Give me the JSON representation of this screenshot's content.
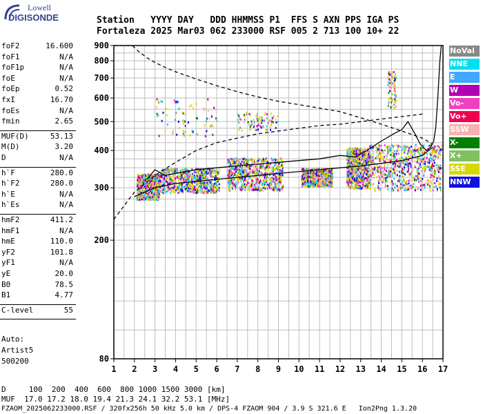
{
  "logo": {
    "line1": "Lowell",
    "line2": "DIGISONDE"
  },
  "header": {
    "line1": "Station   YYYY DAY   DDD HHMMSS P1  FFS S AXN PPS IGA PS",
    "line2": "Fortaleza 2025 Mar03 062 233000 RSF 005 2 713 100 10+ 22"
  },
  "parameters": [
    {
      "name": "foF2",
      "value": "16.600"
    },
    {
      "name": "foF1",
      "value": "N/A"
    },
    {
      "name": "foF1p",
      "value": "N/A"
    },
    {
      "name": "foE",
      "value": "N/A"
    },
    {
      "name": "foEp",
      "value": "0.52"
    },
    {
      "name": "fxI",
      "value": "16.70"
    },
    {
      "name": "foEs",
      "value": "N/A"
    },
    {
      "name": "fmin",
      "value": "2.65"
    },
    {
      "name": "MUF(D)",
      "value": "53.13"
    },
    {
      "name": "M(D)",
      "value": "3.20"
    },
    {
      "name": "D",
      "value": "N/A"
    },
    {
      "name": "h`F",
      "value": "280.0"
    },
    {
      "name": "h`F2",
      "value": "280.0"
    },
    {
      "name": "h`E",
      "value": "N/A"
    },
    {
      "name": "h`Es",
      "value": "N/A"
    },
    {
      "name": "hmF2",
      "value": "411.2"
    },
    {
      "name": "hmF1",
      "value": "N/A"
    },
    {
      "name": "hmE",
      "value": "110.0"
    },
    {
      "name": "yF2",
      "value": "101.8"
    },
    {
      "name": "yF1",
      "value": "N/A"
    },
    {
      "name": "yE",
      "value": "20.0"
    },
    {
      "name": "B0",
      "value": "78.5"
    },
    {
      "name": "B1",
      "value": "4.77"
    },
    {
      "name": "C-level",
      "value": "55"
    }
  ],
  "auto": {
    "line1": "Auto:",
    "line2": "Artist5",
    "line3": "500200"
  },
  "footer": {
    "line1": "D     100  200  400  600  800 1000 1500 3000 [km]",
    "line2": "MUF  17.0 17.2 18.0 19.4 21.3 24.1 32.2 53.1 [MHz]",
    "line3": "FZAOM_2025062233000.RSF / 320fx256h 50 kHz 5.0 km / DPS-4 FZAOM 904 / 3.9 S 321.6 E   Ion2Png 1.3.20"
  },
  "legend": [
    {
      "label": "NoVal",
      "bg": "#888888",
      "fg": "#ffffff"
    },
    {
      "label": "NNE",
      "bg": "#00e0f0",
      "fg": "#ffffff"
    },
    {
      "label": "E",
      "bg": "#40a8ff",
      "fg": "#ffffff"
    },
    {
      "label": "W",
      "bg": "#b000b0",
      "fg": "#ffffff"
    },
    {
      "label": "Vo-",
      "bg": "#f040c0",
      "fg": "#ffffff"
    },
    {
      "label": "Vo+",
      "bg": "#f00050",
      "fg": "#ffffff"
    },
    {
      "label": "SSW",
      "bg": "#f8b0b0",
      "fg": "#ffffff"
    },
    {
      "label": "X-",
      "bg": "#008000",
      "fg": "#ffffff"
    },
    {
      "label": "X+",
      "bg": "#80c060",
      "fg": "#ffffff"
    },
    {
      "label": "SSE",
      "bg": "#d8d800",
      "fg": "#ffffff"
    },
    {
      "label": "NNW",
      "bg": "#1010e0",
      "fg": "#ffffff"
    }
  ],
  "chart_data": {
    "type": "scatter",
    "title": "",
    "xlabel": "",
    "ylabel": "",
    "xlim": [
      1,
      17
    ],
    "ylim": [
      80,
      900
    ],
    "y_scale": "log",
    "x_ticks": [
      "1",
      "2",
      "3",
      "4",
      "5",
      "6",
      "7",
      "8",
      "9",
      "10",
      "11",
      "12",
      "13",
      "14",
      "15",
      "16",
      "17"
    ],
    "y_ticks": [
      "900",
      "800",
      "700",
      "600",
      "500",
      "400",
      "300",
      "200",
      "80"
    ],
    "y_tick_values": [
      900,
      800,
      700,
      600,
      500,
      400,
      300,
      200,
      80
    ],
    "grid": true,
    "series": [
      {
        "kind": "dashed-line",
        "color": "#000000",
        "x": [
          1.0,
          2.0,
          3.0,
          4.0,
          5.0,
          6.0,
          7.0,
          8.0,
          9.0,
          10.0,
          11.0,
          12.0,
          13.0,
          14.0,
          15.0,
          16.0
        ],
        "y": [
          235,
          290,
          330,
          365,
          400,
          425,
          440,
          455,
          465,
          475,
          485,
          490,
          500,
          510,
          520,
          530
        ]
      },
      {
        "kind": "dashed-line",
        "color": "#000000",
        "x": [
          1.0,
          1.9,
          2.2,
          2.6,
          3.0,
          3.5,
          4.0,
          4.5,
          5.0,
          6.0,
          7.0,
          8.0,
          9.0,
          10.0,
          11.0,
          12.0,
          13.0,
          14.0,
          15.0,
          16.0,
          16.5
        ],
        "y": [
          900,
          900,
          860,
          820,
          790,
          760,
          735,
          715,
          695,
          660,
          630,
          605,
          585,
          570,
          555,
          540,
          515,
          490,
          465,
          440,
          420
        ]
      },
      {
        "kind": "line",
        "color": "#000000",
        "x": [
          2.0,
          2.5,
          3.0,
          3.5,
          4.0,
          5.0,
          6.0,
          7.0,
          8.0,
          9.0,
          10.0,
          11.0,
          12.0,
          13.0,
          14.0,
          15.0,
          16.0,
          16.5
        ],
        "y": [
          280,
          290,
          300,
          305,
          310,
          315,
          320,
          325,
          330,
          335,
          340,
          345,
          350,
          355,
          362,
          370,
          385,
          410
        ]
      },
      {
        "kind": "line",
        "color": "#000000",
        "x": [
          2.6,
          3.0,
          3.5,
          4.0,
          5.0,
          6.0,
          7.0,
          8.0,
          9.0,
          10.0,
          11.0,
          12.0,
          12.8,
          13.0,
          13.3,
          14.0,
          14.6,
          15.0,
          15.3,
          15.6,
          15.9,
          16.2,
          16.4,
          16.55
        ],
        "y": [
          320,
          345,
          330,
          335,
          345,
          350,
          355,
          360,
          365,
          370,
          375,
          385,
          380,
          390,
          400,
          430,
          455,
          470,
          500,
          460,
          420,
          400,
          410,
          430
        ]
      },
      {
        "kind": "steep-line",
        "color": "#000000",
        "x": [
          16.55,
          16.65,
          16.75,
          16.85,
          16.92
        ],
        "y": [
          430,
          480,
          600,
          800,
          900
        ]
      }
    ],
    "scatter_regions": [
      {
        "x": [
          2.1,
          3.2
        ],
        "y": [
          275,
          335
        ]
      },
      {
        "x": [
          3.2,
          6.1
        ],
        "y": [
          290,
          350
        ]
      },
      {
        "x": [
          6.5,
          9.2
        ],
        "y": [
          295,
          380
        ]
      },
      {
        "x": [
          10.1,
          11.6
        ],
        "y": [
          305,
          350
        ]
      },
      {
        "x": [
          12.3,
          13.4
        ],
        "y": [
          300,
          410
        ]
      },
      {
        "x": [
          13.4,
          16.9
        ],
        "y": [
          295,
          420
        ]
      },
      {
        "x": [
          7.0,
          9.0
        ],
        "y": [
          470,
          540
        ]
      },
      {
        "x": [
          14.3,
          14.7
        ],
        "y": [
          560,
          740
        ]
      },
      {
        "x": [
          3.0,
          6.0
        ],
        "y": [
          450,
          600
        ]
      }
    ]
  }
}
